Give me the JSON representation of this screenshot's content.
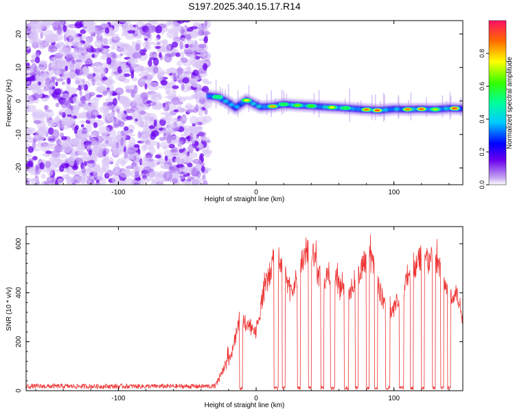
{
  "title": "S197.2025.340.15.17.R14",
  "chart_data": [
    {
      "type": "heatmap",
      "xlabel": "Height of straight line (km)",
      "ylabel": "Frequency (Hz)",
      "xlim": [
        -167,
        150
      ],
      "ylim": [
        -25,
        24
      ],
      "xticks": [
        -100,
        0,
        100
      ],
      "yticks": [
        -20,
        -10,
        0,
        10,
        20
      ],
      "colorbar": {
        "label": "Normalized spectral amplitude",
        "range": [
          0,
          1
        ],
        "ticks": [
          "0.0",
          "0.2",
          "0.4",
          "0.6",
          "0.8"
        ]
      },
      "ridge": [
        {
          "x": -35,
          "f": 1.5
        },
        {
          "x": -28,
          "f": 1.2
        },
        {
          "x": -20,
          "f": -0.5
        },
        {
          "x": -15,
          "f": -2.0
        },
        {
          "x": -7,
          "f": 0.2
        },
        {
          "x": -2,
          "f": -0.8
        },
        {
          "x": 3,
          "f": -1.8
        },
        {
          "x": 12,
          "f": -1.6
        },
        {
          "x": 20,
          "f": -1.0
        },
        {
          "x": 30,
          "f": -1.3
        },
        {
          "x": 40,
          "f": -1.5
        },
        {
          "x": 50,
          "f": -1.8
        },
        {
          "x": 60,
          "f": -2.0
        },
        {
          "x": 70,
          "f": -2.3
        },
        {
          "x": 80,
          "f": -2.6
        },
        {
          "x": 90,
          "f": -2.8
        },
        {
          "x": 100,
          "f": -2.4
        },
        {
          "x": 110,
          "f": -2.5
        },
        {
          "x": 120,
          "f": -2.4
        },
        {
          "x": 130,
          "f": -2.5
        },
        {
          "x": 140,
          "f": -2.2
        },
        {
          "x": 148,
          "f": -2.3
        }
      ],
      "peaks": [
        {
          "x": -28,
          "f": 1.2,
          "a": 0.5
        },
        {
          "x": -7,
          "f": 0.2,
          "a": 0.75
        },
        {
          "x": 12,
          "f": -1.6,
          "a": 0.82
        },
        {
          "x": 20,
          "f": -1.0,
          "a": 0.55
        },
        {
          "x": 30,
          "f": -1.3,
          "a": 0.65
        },
        {
          "x": 40,
          "f": -1.5,
          "a": 0.6
        },
        {
          "x": 55,
          "f": -1.9,
          "a": 0.75
        },
        {
          "x": 65,
          "f": -2.1,
          "a": 0.55
        },
        {
          "x": 80,
          "f": -2.6,
          "a": 0.85
        },
        {
          "x": 88,
          "f": -2.8,
          "a": 0.9
        },
        {
          "x": 110,
          "f": -2.5,
          "a": 0.85
        },
        {
          "x": 120,
          "f": -2.4,
          "a": 0.88
        },
        {
          "x": 130,
          "f": -2.5,
          "a": 0.7
        },
        {
          "x": 144,
          "f": -2.2,
          "a": 0.9
        }
      ]
    },
    {
      "type": "line",
      "xlabel": "Height of straight line (km)",
      "ylabel": "SNR (10 * v/v)",
      "xlim": [
        -167,
        150
      ],
      "ylim": [
        0,
        670
      ],
      "xticks": [
        -100,
        0,
        100
      ],
      "yticks": [
        0,
        200,
        400,
        600
      ],
      "color": "#ee3333",
      "envelope": [
        {
          "x": -167,
          "y": 20
        },
        {
          "x": -30,
          "y": 20
        },
        {
          "x": -24,
          "y": 90
        },
        {
          "x": -18,
          "y": 160
        },
        {
          "x": -12,
          "y": 320
        },
        {
          "x": -6,
          "y": 300
        },
        {
          "x": 0,
          "y": 260
        },
        {
          "x": 5,
          "y": 430
        },
        {
          "x": 10,
          "y": 520
        },
        {
          "x": 15,
          "y": 620
        },
        {
          "x": 20,
          "y": 540
        },
        {
          "x": 25,
          "y": 430
        },
        {
          "x": 30,
          "y": 500
        },
        {
          "x": 35,
          "y": 600
        },
        {
          "x": 40,
          "y": 640
        },
        {
          "x": 45,
          "y": 520
        },
        {
          "x": 50,
          "y": 480
        },
        {
          "x": 55,
          "y": 540
        },
        {
          "x": 60,
          "y": 470
        },
        {
          "x": 65,
          "y": 430
        },
        {
          "x": 70,
          "y": 460
        },
        {
          "x": 75,
          "y": 520
        },
        {
          "x": 80,
          "y": 590
        },
        {
          "x": 85,
          "y": 560
        },
        {
          "x": 90,
          "y": 430
        },
        {
          "x": 95,
          "y": 380
        },
        {
          "x": 100,
          "y": 360
        },
        {
          "x": 105,
          "y": 420
        },
        {
          "x": 110,
          "y": 510
        },
        {
          "x": 115,
          "y": 560
        },
        {
          "x": 120,
          "y": 600
        },
        {
          "x": 125,
          "y": 580
        },
        {
          "x": 130,
          "y": 590
        },
        {
          "x": 135,
          "y": 510
        },
        {
          "x": 140,
          "y": 420
        },
        {
          "x": 145,
          "y": 440
        },
        {
          "x": 150,
          "y": 330
        }
      ],
      "dropouts": [
        {
          "x": -12,
          "w": 2
        },
        {
          "x": 13,
          "w": 3
        },
        {
          "x": 19,
          "w": 2
        },
        {
          "x": 30,
          "w": 2
        },
        {
          "x": 38,
          "w": 2
        },
        {
          "x": 47,
          "w": 2
        },
        {
          "x": 54,
          "w": 3
        },
        {
          "x": 64,
          "w": 3
        },
        {
          "x": 72,
          "w": 2
        },
        {
          "x": 80,
          "w": 2
        },
        {
          "x": 86,
          "w": 2
        },
        {
          "x": 94,
          "w": 3
        },
        {
          "x": 104,
          "w": 3
        },
        {
          "x": 112,
          "w": 2
        },
        {
          "x": 120,
          "w": 2
        },
        {
          "x": 128,
          "w": 2
        },
        {
          "x": 134,
          "w": 2
        },
        {
          "x": 139,
          "w": 2
        }
      ]
    }
  ]
}
